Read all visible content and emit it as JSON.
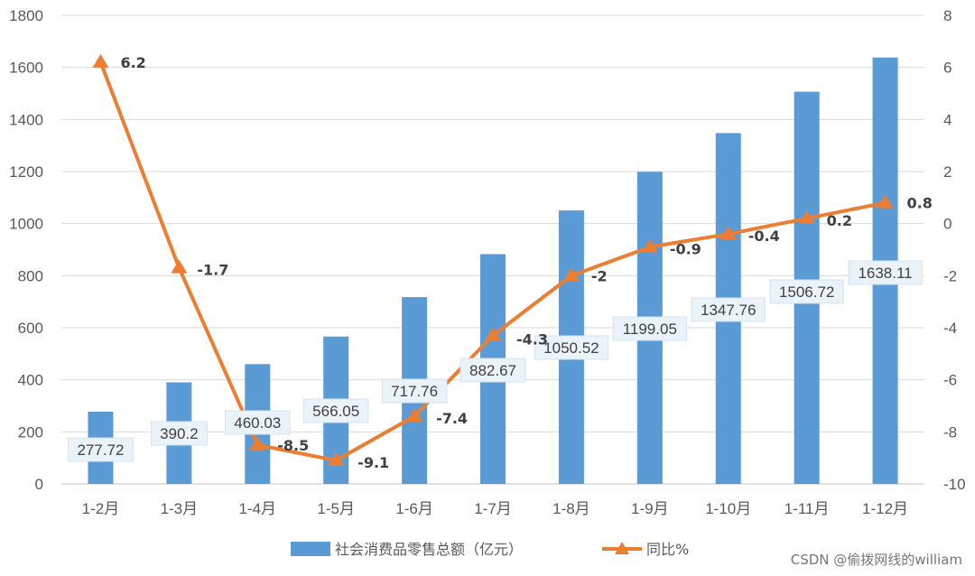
{
  "chart_data": {
    "type": "bar+line",
    "categories": [
      "1-2月",
      "1-3月",
      "1-4月",
      "1-5月",
      "1-6月",
      "1-7月",
      "1-8月",
      "1-9月",
      "1-10月",
      "1-11月",
      "1-12月"
    ],
    "series": [
      {
        "name": "社会消费品零售总额（亿元）",
        "type": "bar",
        "axis": "left",
        "color": "#5B9BD5",
        "values": [
          277.72,
          390.2,
          460.03,
          566.05,
          717.76,
          882.67,
          1050.52,
          1199.05,
          1347.76,
          1506.72,
          1638.11
        ],
        "labels": [
          "277.72",
          "390.2",
          "460.03",
          "566.05",
          "717.76",
          "882.67",
          "1050.52",
          "1199.05",
          "1347.76",
          "1506.72",
          "1638.11"
        ]
      },
      {
        "name": "同比%",
        "type": "line",
        "axis": "right",
        "color": "#ED7D31",
        "marker": "triangle",
        "values": [
          6.2,
          -1.7,
          -8.5,
          -9.1,
          -7.4,
          -4.3,
          -2,
          -0.9,
          -0.4,
          0.2,
          0.8
        ],
        "labels": [
          "6.2",
          "-1.7",
          "-8.5",
          "-9.1",
          "-7.4",
          "-4.3",
          "-2",
          "-0.9",
          "-0.4",
          "0.2",
          "0.8"
        ]
      }
    ],
    "y_left": {
      "min": 0,
      "max": 1800,
      "ticks": [
        "0",
        "200",
        "400",
        "600",
        "800",
        "1000",
        "1200",
        "1400",
        "1600",
        "1800"
      ]
    },
    "y_right": {
      "min": -10,
      "max": 8,
      "ticks": [
        "-10",
        "-8",
        "-6",
        "-4",
        "-2",
        "0",
        "2",
        "4",
        "6",
        "8"
      ]
    },
    "grid": true,
    "legend_position": "bottom"
  },
  "watermark": "CSDN @偷拨网线的william"
}
